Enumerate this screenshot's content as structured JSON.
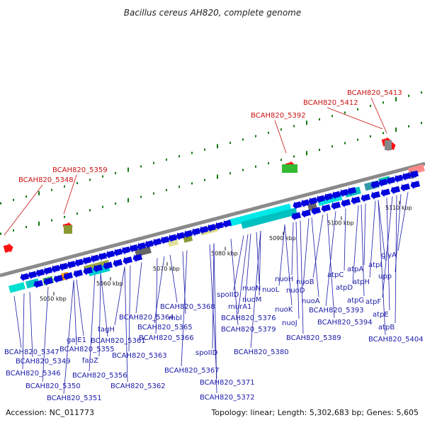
{
  "title": "Bacillus cereus AH820, complete genome",
  "accession": "Accession: NC_011773",
  "topology": "Topology: linear; Length: 5,302,683 bp; Genes: 5,605",
  "colors": {
    "backbone": "#8a8a8a",
    "forward_gene": "#0000dd",
    "highlight": "#ff1111",
    "label": "#1a1aa8",
    "highlight_label": "#cc1111",
    "marker": "#117711"
  },
  "scale_ticks": [
    "5050 kbp",
    "5060 kbp",
    "5070 kbp",
    "5080 kbp",
    "5090 kbp",
    "5100 kbp",
    "5110 kbp"
  ],
  "highlight_genes": [
    "BCAH820_5348",
    "BCAH820_5359",
    "BCAH820_5392",
    "BCAH820_5412",
    "BCAH820_5413"
  ],
  "gene_labels": [
    "BCAH820_5347",
    "BCAH820_5349",
    "BCAH820_5346",
    "BCAH820_5350",
    "BCAH820_5351",
    "galE1",
    "BCAH820_5355",
    "fabZ",
    "BCAH820_5356",
    "tagH",
    "BCAH820_5361",
    "BCAH820_5362",
    "BCAH820_5363",
    "BCAH820_5364",
    "BCAH820_5365",
    "BCAH820_5368",
    "mbl",
    "BCAH820_5366",
    "BCAH820_5367",
    "spoIID",
    "BCAH820_5371",
    "BCAH820_5372",
    "spoIID",
    "murA1",
    "BCAH820_5376",
    "BCAH820_5379",
    "nuoN",
    "nuoM",
    "nuoL",
    "BCAH820_5380",
    "nuoK",
    "nuoJ",
    "nuoH",
    "nuoD",
    "nuoB",
    "nuoA",
    "BCAH820_5389",
    "atpC",
    "atpD",
    "BCAH820_5393",
    "BCAH820_5394",
    "atpG",
    "atpA",
    "atpH",
    "atpF",
    "atpI",
    "atpE",
    "atpB",
    "upp",
    "glyA",
    "BCAH820_5404"
  ]
}
